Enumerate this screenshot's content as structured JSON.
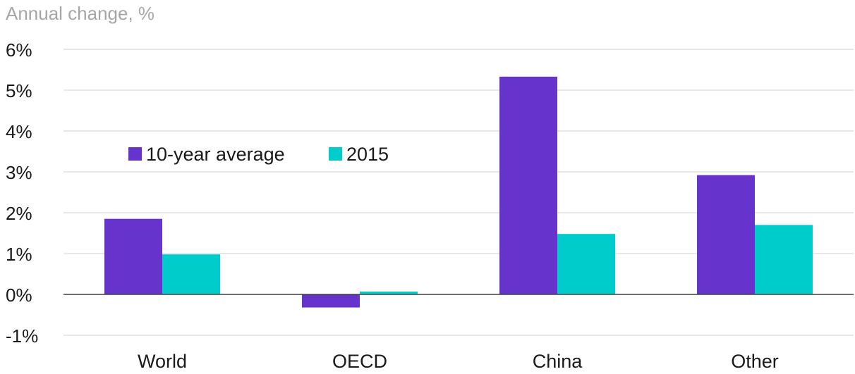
{
  "chart_data": {
    "type": "bar",
    "ylabel": "Annual change, %",
    "categories": [
      "World",
      "OECD",
      "China",
      "Other"
    ],
    "series": [
      {
        "name": "10-year average",
        "values": [
          1.85,
          -0.32,
          5.33,
          2.92
        ]
      },
      {
        "name": "2015",
        "values": [
          0.98,
          0.07,
          1.48,
          1.7
        ]
      }
    ],
    "ylim": [
      -1,
      6
    ],
    "yticks": [
      -1,
      0,
      1,
      2,
      3,
      4,
      5,
      6
    ],
    "ytick_labels": [
      "-1%",
      "0%",
      "1%",
      "2%",
      "3%",
      "4%",
      "5%",
      "6%"
    ],
    "grid": true,
    "legend_position": "top-left",
    "colors": {
      "10-year average": "#6633cc",
      "2015": "#00cccc"
    },
    "gridline_color": "#d9d9d9",
    "zero_line_color": "#404040"
  }
}
